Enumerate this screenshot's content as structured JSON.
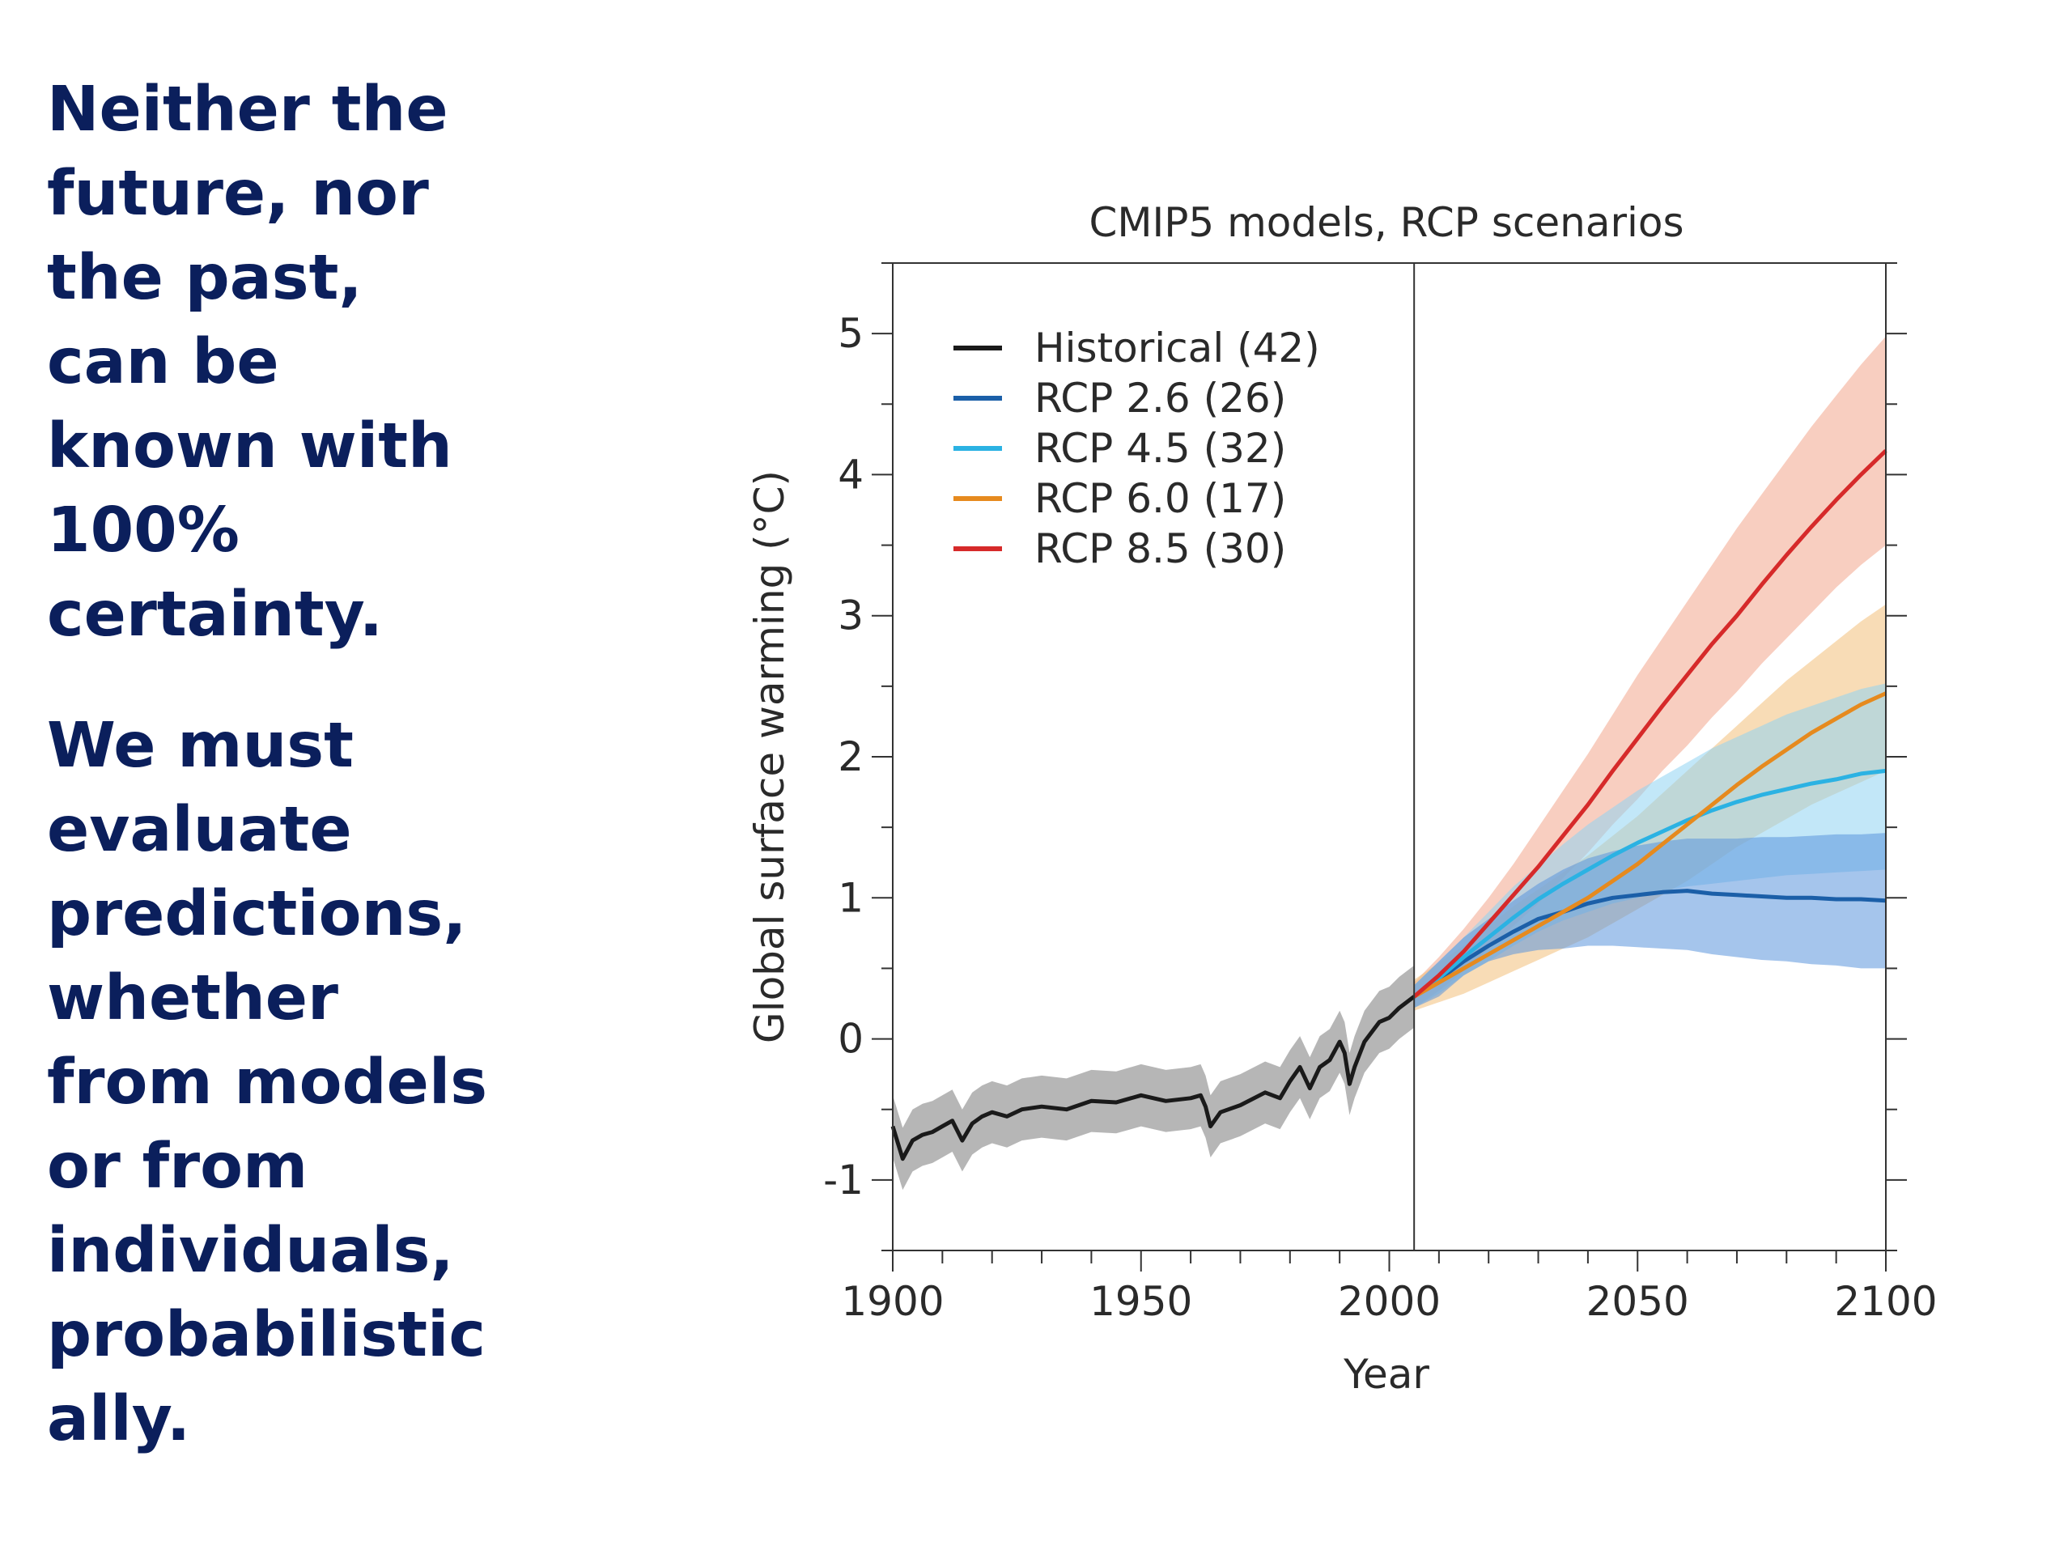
{
  "slide": {
    "paragraph1": [
      "Neither the",
      "future, nor",
      "the past,",
      "can be",
      "known with",
      "100%",
      "certainty."
    ],
    "paragraph2": [
      "We must",
      "evaluate",
      "predictions,",
      "whether",
      "from models",
      "or from",
      "individuals,",
      "probabilistic",
      "ally."
    ]
  },
  "chart_data": {
    "type": "line",
    "title": "CMIP5 models, RCP scenarios",
    "xlabel": "Year",
    "ylabel": "Global surface warming (°C)",
    "xlim": [
      1900,
      2100
    ],
    "ylim": [
      -1.5,
      5.5
    ],
    "xticks": [
      1900,
      1950,
      2000,
      2050,
      2100
    ],
    "yticks": [
      -1,
      0,
      1,
      2,
      3,
      4,
      5
    ],
    "divider_year": 2005,
    "legend_position": "top-left",
    "grid": false,
    "series": [
      {
        "name": "Historical (42)",
        "color": "#1a1a1a",
        "band_color": "#9e9e9e",
        "x": [
          1900,
          1902,
          1904,
          1906,
          1908,
          1910,
          1912,
          1914,
          1916,
          1918,
          1920,
          1923,
          1926,
          1930,
          1935,
          1940,
          1945,
          1950,
          1955,
          1960,
          1962,
          1963,
          1964,
          1966,
          1970,
          1975,
          1978,
          1980,
          1982,
          1984,
          1986,
          1988,
          1990,
          1991,
          1992,
          1993,
          1995,
          1998,
          2000,
          2002,
          2005
        ],
        "y": [
          -0.62,
          -0.85,
          -0.72,
          -0.68,
          -0.66,
          -0.62,
          -0.58,
          -0.72,
          -0.6,
          -0.55,
          -0.52,
          -0.55,
          -0.5,
          -0.48,
          -0.5,
          -0.44,
          -0.45,
          -0.4,
          -0.44,
          -0.42,
          -0.4,
          -0.48,
          -0.62,
          -0.52,
          -0.47,
          -0.38,
          -0.42,
          -0.3,
          -0.2,
          -0.35,
          -0.2,
          -0.15,
          -0.02,
          -0.1,
          -0.32,
          -0.2,
          -0.02,
          0.12,
          0.15,
          0.22,
          0.3
        ],
        "band_halfwidth": 0.22
      },
      {
        "name": "RCP 2.6 (26)",
        "color": "#1b5fa8",
        "band_color": "#5b95dc",
        "x": [
          2005,
          2010,
          2015,
          2020,
          2025,
          2030,
          2035,
          2040,
          2045,
          2050,
          2055,
          2060,
          2065,
          2070,
          2075,
          2080,
          2085,
          2090,
          2095,
          2100
        ],
        "y": [
          0.3,
          0.42,
          0.55,
          0.66,
          0.76,
          0.85,
          0.9,
          0.96,
          1.0,
          1.02,
          1.04,
          1.05,
          1.03,
          1.02,
          1.01,
          1.0,
          1.0,
          0.99,
          0.99,
          0.98
        ],
        "lower": [
          0.22,
          0.3,
          0.45,
          0.55,
          0.6,
          0.63,
          0.64,
          0.66,
          0.66,
          0.65,
          0.64,
          0.63,
          0.6,
          0.58,
          0.56,
          0.55,
          0.53,
          0.52,
          0.5,
          0.5
        ],
        "upper": [
          0.38,
          0.55,
          0.72,
          0.85,
          0.98,
          1.1,
          1.2,
          1.28,
          1.33,
          1.37,
          1.4,
          1.42,
          1.42,
          1.42,
          1.43,
          1.43,
          1.44,
          1.45,
          1.45,
          1.46
        ]
      },
      {
        "name": "RCP 4.5 (32)",
        "color": "#2bb2e3",
        "band_color": "#8fd4f2",
        "x": [
          2005,
          2010,
          2015,
          2020,
          2025,
          2030,
          2035,
          2040,
          2045,
          2050,
          2055,
          2060,
          2065,
          2070,
          2075,
          2080,
          2085,
          2090,
          2095,
          2100
        ],
        "y": [
          0.3,
          0.43,
          0.58,
          0.72,
          0.86,
          0.99,
          1.1,
          1.2,
          1.3,
          1.39,
          1.47,
          1.55,
          1.62,
          1.68,
          1.73,
          1.77,
          1.81,
          1.84,
          1.88,
          1.9
        ],
        "lower": [
          0.22,
          0.32,
          0.45,
          0.55,
          0.66,
          0.76,
          0.84,
          0.9,
          0.96,
          1.0,
          1.05,
          1.08,
          1.1,
          1.12,
          1.14,
          1.16,
          1.17,
          1.18,
          1.19,
          1.2
        ],
        "upper": [
          0.38,
          0.55,
          0.72,
          0.9,
          1.08,
          1.23,
          1.38,
          1.52,
          1.64,
          1.76,
          1.86,
          1.96,
          2.06,
          2.14,
          2.22,
          2.3,
          2.36,
          2.42,
          2.48,
          2.52
        ]
      },
      {
        "name": "RCP 6.0 (17)",
        "color": "#e68a1e",
        "band_color": "#f3c07a",
        "x": [
          2005,
          2010,
          2015,
          2020,
          2025,
          2030,
          2035,
          2040,
          2045,
          2050,
          2055,
          2060,
          2065,
          2070,
          2075,
          2080,
          2085,
          2090,
          2095,
          2100
        ],
        "y": [
          0.3,
          0.4,
          0.5,
          0.6,
          0.7,
          0.8,
          0.9,
          1.0,
          1.12,
          1.24,
          1.38,
          1.52,
          1.66,
          1.8,
          1.93,
          2.05,
          2.17,
          2.27,
          2.37,
          2.45
        ],
        "lower": [
          0.2,
          0.26,
          0.32,
          0.4,
          0.48,
          0.56,
          0.64,
          0.72,
          0.82,
          0.92,
          1.02,
          1.12,
          1.24,
          1.36,
          1.46,
          1.56,
          1.66,
          1.74,
          1.82,
          1.9
        ],
        "upper": [
          0.42,
          0.54,
          0.66,
          0.8,
          0.94,
          1.06,
          1.18,
          1.3,
          1.44,
          1.58,
          1.74,
          1.9,
          2.06,
          2.22,
          2.38,
          2.54,
          2.68,
          2.82,
          2.96,
          3.08
        ]
      },
      {
        "name": "RCP 8.5 (30)",
        "color": "#d62a2a",
        "band_color": "#f2a58c",
        "x": [
          2005,
          2010,
          2015,
          2020,
          2025,
          2030,
          2035,
          2040,
          2045,
          2050,
          2055,
          2060,
          2065,
          2070,
          2075,
          2080,
          2085,
          2090,
          2095,
          2100
        ],
        "y": [
          0.3,
          0.45,
          0.62,
          0.82,
          1.02,
          1.22,
          1.44,
          1.66,
          1.9,
          2.13,
          2.36,
          2.58,
          2.8,
          3.0,
          3.22,
          3.43,
          3.63,
          3.82,
          4.0,
          4.17
        ],
        "lower": [
          0.22,
          0.34,
          0.48,
          0.64,
          0.8,
          0.96,
          1.14,
          1.32,
          1.52,
          1.7,
          1.9,
          2.08,
          2.28,
          2.46,
          2.66,
          2.84,
          3.02,
          3.2,
          3.36,
          3.5
        ],
        "upper": [
          0.4,
          0.58,
          0.78,
          1.0,
          1.24,
          1.5,
          1.76,
          2.02,
          2.3,
          2.58,
          2.84,
          3.1,
          3.36,
          3.62,
          3.86,
          4.1,
          4.34,
          4.56,
          4.78,
          4.98
        ]
      }
    ]
  }
}
